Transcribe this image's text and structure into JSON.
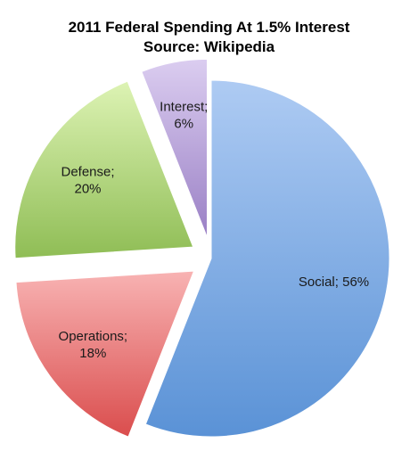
{
  "chart_data": {
    "type": "pie",
    "title": "2011 Federal Spending At 1.5% Interest",
    "subtitle": "Source: Wikipedia",
    "slices": [
      {
        "category": "Social",
        "value": 56,
        "label_lines": [
          "Social; 56%"
        ],
        "color_light": "#aecbf3",
        "color_dark": "#5a92d6",
        "exploded": false
      },
      {
        "category": "Operations",
        "value": 18,
        "label_lines": [
          "Operations;",
          "18%"
        ],
        "color_light": "#f8b3b3",
        "color_dark": "#da4d4d",
        "exploded": true
      },
      {
        "category": "Defense",
        "value": 20,
        "label_lines": [
          "Defense;",
          "20%"
        ],
        "color_light": "#ddf3b4",
        "color_dark": "#8fbd55",
        "exploded": true
      },
      {
        "category": "Interest",
        "value": 6,
        "label_lines": [
          "Interest;",
          "6%"
        ],
        "color_light": "#dbcdf0",
        "color_dark": "#9a80c5",
        "exploded": true
      }
    ],
    "legend": "none",
    "grid": false
  }
}
